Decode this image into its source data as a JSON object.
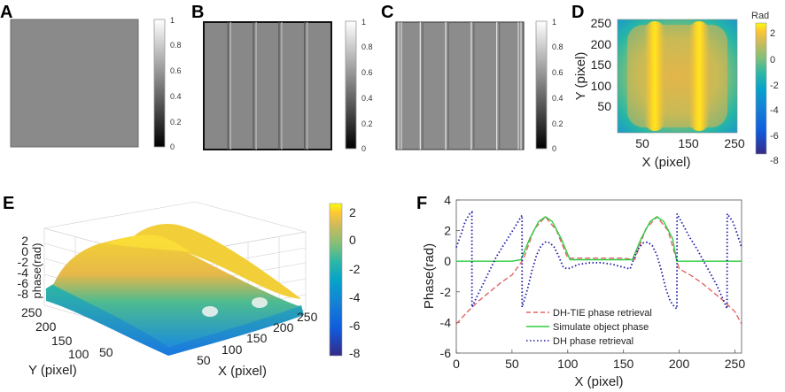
{
  "panels": {
    "A": {
      "label": "A",
      "colorbar_ticks": [
        "1",
        "0.8",
        "0.6",
        "0.4",
        "0.2",
        "0"
      ],
      "fill": "#8a8a8a",
      "stripes": []
    },
    "B": {
      "label": "B",
      "colorbar_ticks": [
        "1",
        "0.8",
        "0.6",
        "0.4",
        "0.2",
        "0"
      ],
      "fill": "#888888",
      "stripes": [
        0.2,
        0.4,
        0.6,
        0.8
      ]
    },
    "C": {
      "label": "C",
      "colorbar_ticks": [
        "1",
        "0.8",
        "0.6",
        "0.4",
        "0.2",
        "0"
      ],
      "fill": "#8c8c8c",
      "stripes": [
        0.2,
        0.4,
        0.6,
        0.8
      ]
    },
    "D": {
      "label": "D",
      "colorbar_title": "Rad",
      "colorbar_ticks": [
        "2",
        "0",
        "-2",
        "-4",
        "-6",
        "-8"
      ],
      "y_ticks": [
        "250",
        "200",
        "150",
        "100",
        "50"
      ],
      "x_ticks": [
        "50",
        "150",
        "250"
      ],
      "xlabel": "X (pixel)",
      "ylabel": "Y (pixel)"
    },
    "E": {
      "label": "E",
      "zlabel": "phase(rad)",
      "z_ticks": [
        "2",
        "0",
        "-2",
        "-4",
        "-6",
        "-8"
      ],
      "y_ticks": [
        "250",
        "200",
        "150",
        "100",
        "50"
      ],
      "x_ticks": [
        "50",
        "100",
        "150",
        "200",
        "250"
      ],
      "xlabel": "X (pixel)",
      "ylabel": "Y (pixel)",
      "colorbar_ticks": [
        "2",
        "0",
        "-2",
        "-4",
        "-6",
        "-8"
      ]
    },
    "F": {
      "label": "F"
    }
  },
  "chart_data": {
    "type": "line",
    "title": "",
    "xlabel": "X (pixel)",
    "ylabel": "Phase(rad)",
    "xlim": [
      0,
      256
    ],
    "ylim": [
      -6,
      4
    ],
    "x_ticks": [
      0,
      50,
      100,
      150,
      200,
      250
    ],
    "y_ticks": [
      4,
      2,
      0,
      -2,
      -4,
      -6
    ],
    "series": [
      {
        "name": "DH-TIE phase retrieval",
        "style": "dashed",
        "color": "#e06666",
        "x": [
          0,
          10,
          20,
          30,
          40,
          50,
          60,
          70,
          80,
          90,
          100,
          110,
          120,
          130,
          140,
          150,
          160,
          170,
          180,
          190,
          200,
          210,
          220,
          230,
          240,
          250,
          256
        ],
        "y": [
          -4.1,
          -3.3,
          -2.6,
          -2.0,
          -1.4,
          -0.9,
          0.1,
          2.1,
          2.9,
          2.0,
          0.2,
          0.2,
          0.2,
          0.2,
          0.2,
          0.2,
          0.1,
          2.1,
          2.9,
          2.0,
          -0.5,
          -0.9,
          -1.4,
          -2.0,
          -2.6,
          -3.3,
          -4.1
        ]
      },
      {
        "name": "Simulate object phase",
        "style": "solid",
        "color": "#2ecc40",
        "x": [
          0,
          50,
          58,
          66,
          74,
          80,
          86,
          94,
          102,
          156,
          158,
          166,
          174,
          180,
          186,
          194,
          198,
          256
        ],
        "y": [
          0,
          0,
          0.1,
          1.5,
          2.6,
          2.9,
          2.6,
          1.5,
          0.1,
          0.1,
          0.1,
          1.5,
          2.6,
          2.9,
          2.6,
          1.5,
          0,
          0
        ]
      },
      {
        "name": "DH phase retrieval",
        "style": "dotted",
        "color": "#1a1aa8",
        "x": [
          0,
          4,
          8,
          12,
          14,
          14.1,
          18,
          24,
          30,
          36,
          42,
          48,
          54,
          58,
          59,
          59.1,
          64,
          68,
          72,
          76,
          80,
          84,
          88,
          92,
          96,
          100,
          110,
          120,
          130,
          140,
          150,
          156,
          160,
          164,
          168,
          172,
          176,
          180,
          184,
          188,
          192,
          196,
          198,
          198.1,
          204,
          210,
          216,
          222,
          228,
          234,
          240,
          243,
          243.1,
          248,
          252,
          256
        ],
        "y": [
          0.9,
          1.7,
          2.6,
          3.1,
          3.2,
          -3.0,
          -2.4,
          -1.5,
          -0.6,
          0.3,
          1.0,
          1.7,
          2.4,
          2.9,
          3.0,
          -3.0,
          -1.8,
          -0.6,
          0.4,
          1.0,
          1.25,
          1.2,
          0.9,
          0.3,
          -0.4,
          -0.5,
          -0.2,
          -0.1,
          -0.1,
          -0.2,
          -0.4,
          -0.5,
          0.3,
          0.9,
          1.2,
          1.25,
          1.0,
          0.4,
          -0.6,
          -1.8,
          -2.6,
          -3.0,
          -3.1,
          3.1,
          2.3,
          1.5,
          0.8,
          0.0,
          -0.8,
          -1.6,
          -2.6,
          -3.1,
          3.1,
          2.6,
          1.8,
          0.9
        ]
      }
    ]
  }
}
